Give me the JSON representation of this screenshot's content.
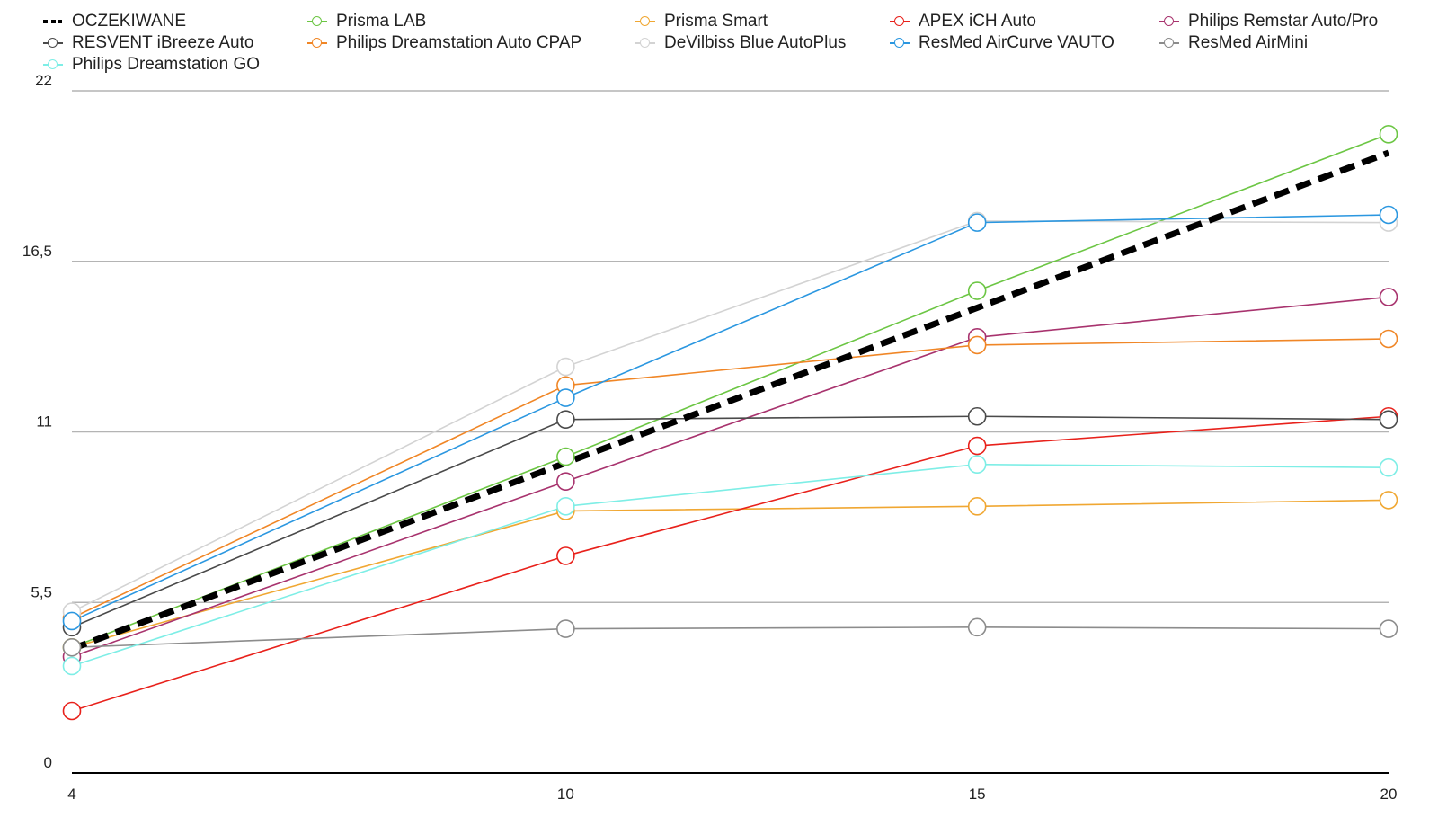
{
  "chart_data": {
    "type": "line",
    "x": [
      4,
      10,
      15,
      20
    ],
    "ylim": [
      0,
      22
    ],
    "yticks": [
      "0",
      "5,5",
      "11",
      "16,5",
      "22"
    ],
    "xticks": [
      "4",
      "10",
      "15",
      "20"
    ],
    "grid": true,
    "legend_position": "top",
    "series": [
      {
        "name": "OCZEKIWANE",
        "color": "#000000",
        "style": "dashed",
        "markers": false,
        "values": [
          4,
          10,
          15,
          20
        ]
      },
      {
        "name": "Prisma LAB",
        "color": "#6cc644",
        "values": [
          4.05,
          10.2,
          15.55,
          20.6
        ]
      },
      {
        "name": "Prisma Smart",
        "color": "#f0a732",
        "values": [
          4.05,
          8.45,
          8.6,
          8.8
        ]
      },
      {
        "name": "APEX iCH Auto",
        "color": "#e8211b",
        "values": [
          2.0,
          7.0,
          10.55,
          11.5
        ]
      },
      {
        "name": "Philips Remstar Auto/Pro",
        "color": "#a8336e",
        "values": [
          3.75,
          9.4,
          14.05,
          15.35
        ]
      },
      {
        "name": "RESVENT iBreeze Auto",
        "color": "#4a4a4a",
        "values": [
          4.7,
          11.4,
          11.5,
          11.4
        ]
      },
      {
        "name": "Philips Dreamstation Auto CPAP",
        "color": "#f08626",
        "values": [
          5.0,
          12.5,
          13.8,
          14.0
        ]
      },
      {
        "name": "DeVilbiss Blue AutoPlus",
        "color": "#d3d3d3",
        "values": [
          5.2,
          13.1,
          17.8,
          17.75
        ]
      },
      {
        "name": "ResMed AirCurve VAUTO",
        "color": "#2b97e0",
        "values": [
          4.9,
          12.1,
          17.75,
          18.0
        ]
      },
      {
        "name": "ResMed AirMini",
        "color": "#8c8c8c",
        "values": [
          4.05,
          4.65,
          4.7,
          4.65
        ]
      },
      {
        "name": "Philips Dreamstation GO",
        "color": "#7eeee6",
        "values": [
          3.45,
          8.6,
          9.95,
          9.85
        ]
      }
    ]
  },
  "legend_columns": [
    [
      "OCZEKIWANE",
      "RESVENT iBreeze Auto",
      "Philips Dreamstation GO"
    ],
    [
      "Prisma LAB",
      "Philips Dreamstation Auto CPAP"
    ],
    [
      "Prisma Smart",
      "DeVilbiss Blue AutoPlus"
    ],
    [
      "APEX iCH Auto",
      "ResMed AirCurve VAUTO"
    ],
    [
      "Philips Remstar Auto/Pro",
      "ResMed AirMini"
    ]
  ]
}
